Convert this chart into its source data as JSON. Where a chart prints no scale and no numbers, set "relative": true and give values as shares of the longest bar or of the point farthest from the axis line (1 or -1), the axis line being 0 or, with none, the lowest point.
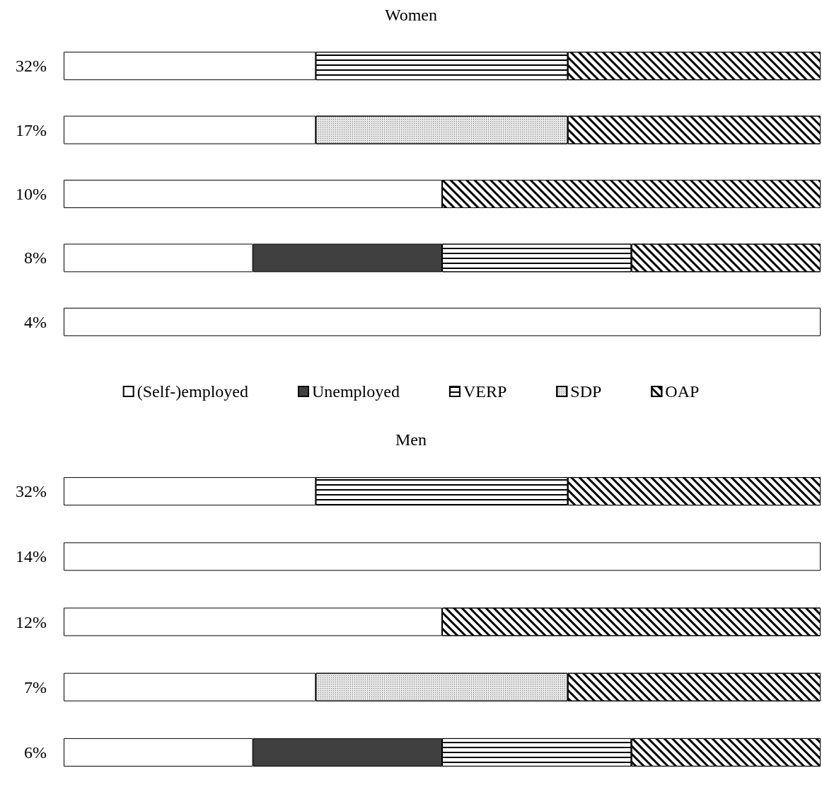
{
  "chart_data": [
    {
      "type": "bar",
      "title": "Women",
      "orientation": "horizontal",
      "stacked": true,
      "relative": true,
      "legend": "bottom",
      "categories": [
        "32%",
        "17%",
        "10%",
        "8%",
        "4%"
      ],
      "series": [
        {
          "name": "(Self-)employed",
          "color": "#ffffff",
          "values": [
            0.333,
            0.333,
            0.5,
            0.25,
            1
          ]
        },
        {
          "name": "Unemployed",
          "color": "#404040",
          "values": [
            null,
            null,
            null,
            0.25,
            null
          ]
        },
        {
          "name": "VERP",
          "color": "#ffffff",
          "values": [
            0.333,
            null,
            null,
            0.25,
            null
          ]
        },
        {
          "name": "SDP",
          "color": "#e6e6e6",
          "values": [
            null,
            0.333,
            null,
            null,
            null
          ]
        },
        {
          "name": "OAP",
          "color": "#ffffff",
          "values": [
            0.334,
            0.334,
            0.5,
            0.25,
            null
          ]
        }
      ]
    },
    {
      "type": "bar",
      "title": "Men",
      "orientation": "horizontal",
      "stacked": true,
      "relative": true,
      "categories": [
        "32%",
        "14%",
        "12%",
        "7%",
        "6%"
      ],
      "series": [
        {
          "color": "#ffffff",
          "values": [
            0.333,
            1,
            0.5,
            0.333,
            0.25
          ]
        },
        {
          "color": "#404040",
          "values": [
            null,
            null,
            null,
            null,
            0.25
          ]
        },
        {
          "color": "#ffffff",
          "values": [
            0.333,
            null,
            null,
            null,
            0.25
          ]
        },
        {
          "color": "#e6e6e6",
          "values": [
            null,
            null,
            null,
            0.333,
            null
          ]
        },
        {
          "color": "#ffffff",
          "values": [
            0.334,
            null,
            0.5,
            0.334,
            0.25
          ]
        }
      ]
    }
  ]
}
